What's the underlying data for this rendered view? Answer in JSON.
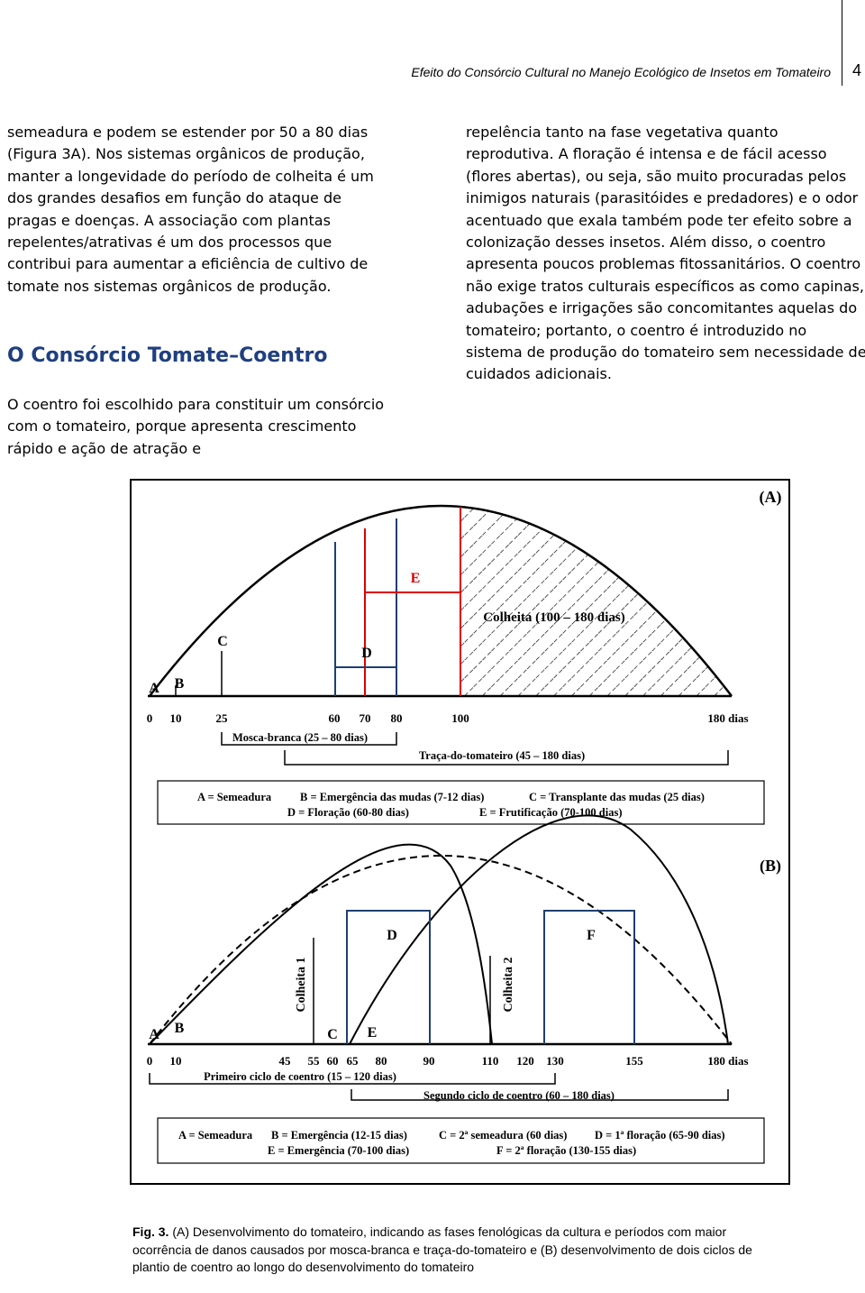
{
  "header": {
    "title": "Efeito do Consórcio Cultural no Manejo Ecológico de Insetos em Tomateiro",
    "page": "4"
  },
  "left_column": {
    "paragraph_1": "semeadura e podem se estender por 50 a 80 dias (Figura 3A). Nos sistemas orgânicos de produção, manter a longevidade do período de colheita é um dos grandes desafios em função do ataque de pragas e doenças. A associação com plantas repelentes/atrativas é um dos processos que contribui para aumentar a eficiência de cultivo de tomate nos sistemas orgânicos de produção.",
    "heading": "O Consórcio Tomate–Coentro",
    "paragraph_2": "O coentro foi escolhido para constituir um consórcio com o tomateiro, porque apresenta crescimento rápido e ação de atração e"
  },
  "right_column": {
    "paragraph": "repelência tanto na fase vegetativa quanto reprodutiva. A floração é intensa e de fácil acesso (flores abertas), ou seja, são muito procuradas pelos inimigos naturais (parasitóides e predadores) e o odor acentuado que exala também pode ter efeito sobre a colonização desses insetos. Além disso, o coentro apresenta poucos problemas fitossanitários. O coentro não exige tratos culturais específicos as como capinas, adubações e irrigações são concomitantes aquelas do tomateiro; portanto, o coentro é introduzido no sistema de produção do tomateiro sem necessidade de cuidados adicionais."
  },
  "figure": {
    "panel_a": {
      "label": "(A)",
      "letters": [
        "A",
        "B",
        "C",
        "D",
        "E"
      ],
      "harvest": "Colheita (100 – 180 dias)",
      "ticks": [
        "0",
        "10",
        "25",
        "60",
        "70",
        "80",
        "100",
        "180 dias"
      ],
      "ranges": [
        "Mosca-branca (25 – 80 dias)",
        "Traça-do-tomateiro (45 – 180 dias)"
      ],
      "legend": [
        "A = Semeadura",
        "B = Emergência das mudas (7-12 dias)",
        "C = Transplante das mudas (25 dias)",
        "D = Floração (60-80 dias)",
        "E = Frutificação (70-100 dias)"
      ]
    },
    "panel_b": {
      "label": "(B)",
      "letters": [
        "A",
        "B",
        "C",
        "E",
        "D",
        "F"
      ],
      "harvests": [
        "Colheita 1",
        "Colheita 2"
      ],
      "ticks": [
        "0",
        "10",
        "45",
        "55",
        "60",
        "65",
        "80",
        "90",
        "110",
        "120",
        "130",
        "155",
        "180 dias"
      ],
      "ranges": [
        "Primeiro ciclo de coentro (15 – 120 dias)",
        "Segundo ciclo de coentro (60 – 180 dias)"
      ],
      "legend": [
        "A = Semeadura",
        "B = Emergência (12-15 dias)",
        "C = 2ª semeadura (60 dias)",
        "D = 1ª floração (65-90 dias)",
        "E = Emergência (70-100 dias)",
        "F = 2ª floração (130-155 dias)"
      ]
    }
  },
  "caption": {
    "label": "Fig. 3.",
    "text": "(A) Desenvolvimento do tomateiro, indicando as fases fenológicas da cultura e períodos com maior ocorrência de danos causados por mosca-branca e traça-do-tomateiro e (B) desenvolvimento de dois ciclos de plantio de coentro ao longo do desenvolvimento do tomateiro"
  }
}
